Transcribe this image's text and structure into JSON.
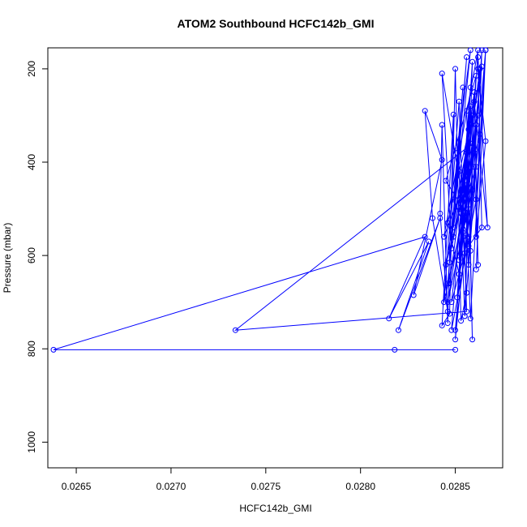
{
  "chart_data": {
    "type": "line",
    "title": "ATOM2 Southbound HCFC142b_GMI",
    "xlabel": "HCFC142b_GMI",
    "ylabel": "Pressure (mbar)",
    "xlim": [
      0.02635,
      0.02875
    ],
    "ylim": [
      1055,
      155
    ],
    "y_axis_reversed": true,
    "x_ticks": [
      {
        "value": 0.0265,
        "label": "0.0265"
      },
      {
        "value": 0.027,
        "label": "0.0270"
      },
      {
        "value": 0.0275,
        "label": "0.0275"
      },
      {
        "value": 0.028,
        "label": "0.0280"
      },
      {
        "value": 0.0285,
        "label": "0.0285"
      }
    ],
    "y_ticks": [
      {
        "value": 200,
        "label": "200"
      },
      {
        "value": 400,
        "label": "400"
      },
      {
        "value": 600,
        "label": "600"
      },
      {
        "value": 800,
        "label": "800"
      },
      {
        "value": 1000,
        "label": "1000"
      }
    ],
    "grid": false,
    "marker": "open-circle",
    "series": [
      {
        "color": "#0000ff",
        "points": [
          [
            0.0285,
            802
          ],
          [
            0.02818,
            802
          ],
          [
            0.02638,
            802
          ],
          [
            0.02834,
            560
          ],
          [
            0.02815,
            735
          ],
          [
            0.02836,
            570
          ],
          [
            0.0282,
            760
          ],
          [
            0.02842,
            520
          ],
          [
            0.02828,
            685
          ],
          [
            0.02843,
            395
          ],
          [
            0.02834,
            290
          ],
          [
            0.02838,
            520
          ],
          [
            0.02846,
            720
          ],
          [
            0.02842,
            510
          ],
          [
            0.02843,
            320
          ],
          [
            0.02846,
            745
          ],
          [
            0.02849,
            298
          ],
          [
            0.02843,
            750
          ],
          [
            0.02847,
            725
          ],
          [
            0.0285,
            200
          ],
          [
            0.02853,
            740
          ],
          [
            0.02856,
            680
          ],
          [
            0.02852,
            420
          ],
          [
            0.02855,
            730
          ],
          [
            0.02857,
            500
          ],
          [
            0.02856,
            290
          ],
          [
            0.02859,
            780
          ],
          [
            0.02858,
            590
          ],
          [
            0.0286,
            250
          ],
          [
            0.02862,
            620
          ],
          [
            0.0286,
            410
          ],
          [
            0.02864,
            160
          ],
          [
            0.02861,
            560
          ],
          [
            0.02866,
            355
          ],
          [
            0.02862,
            200
          ],
          [
            0.02864,
            540
          ],
          [
            0.02857,
            580
          ],
          [
            0.02866,
            160
          ],
          [
            0.02861,
            480
          ],
          [
            0.02848,
            760
          ],
          [
            0.02858,
            240
          ],
          [
            0.02852,
            610
          ],
          [
            0.02854,
            560
          ],
          [
            0.02862,
            300
          ],
          [
            0.0285,
            780
          ],
          [
            0.02857,
            330
          ],
          [
            0.02851,
            690
          ],
          [
            0.02859,
            185
          ],
          [
            0.02855,
            730
          ],
          [
            0.02861,
            410
          ],
          [
            0.02853,
            510
          ],
          [
            0.0286,
            380
          ],
          [
            0.02845,
            620
          ],
          [
            0.02858,
            320
          ],
          [
            0.02849,
            540
          ],
          [
            0.02856,
            175
          ],
          [
            0.02846,
            660
          ],
          [
            0.02858,
            455
          ],
          [
            0.02844,
            700
          ],
          [
            0.02852,
            270
          ],
          [
            0.02856,
            720
          ],
          [
            0.02734,
            760
          ],
          [
            0.02859,
            360
          ],
          [
            0.02848,
            585
          ],
          [
            0.02843,
            210
          ],
          [
            0.02857,
            560
          ],
          [
            0.02849,
            480
          ],
          [
            0.02854,
            240
          ],
          [
            0.02847,
            615
          ],
          [
            0.02858,
            160
          ],
          [
            0.02851,
            380
          ],
          [
            0.02856,
            510
          ],
          [
            0.02845,
            440
          ],
          [
            0.02861,
            215
          ],
          [
            0.02852,
            640
          ],
          [
            0.02846,
            530
          ],
          [
            0.02859,
            300
          ],
          [
            0.02848,
            700
          ],
          [
            0.02855,
            595
          ],
          [
            0.02862,
            160
          ],
          [
            0.02844,
            560
          ],
          [
            0.02857,
            420
          ],
          [
            0.0285,
            760
          ],
          [
            0.02863,
            340
          ],
          [
            0.02853,
            490
          ],
          [
            0.0286,
            250
          ],
          [
            0.02847,
            660
          ],
          [
            0.02856,
            380
          ],
          [
            0.02849,
            560
          ],
          [
            0.02864,
            195
          ],
          [
            0.02855,
            520
          ],
          [
            0.02858,
            280
          ],
          [
            0.02852,
            600
          ],
          [
            0.02861,
            320
          ],
          [
            0.02846,
            700
          ],
          [
            0.02859,
            460
          ],
          [
            0.02854,
            550
          ],
          [
            0.02862,
            175
          ],
          [
            0.02867,
            540
          ],
          [
            0.0286,
            270
          ],
          [
            0.02857,
            620
          ],
          [
            0.02863,
            200
          ],
          [
            0.02855,
            440
          ],
          [
            0.02858,
            735
          ],
          [
            0.02866,
            160
          ],
          [
            0.02861,
            630
          ]
        ]
      }
    ]
  }
}
